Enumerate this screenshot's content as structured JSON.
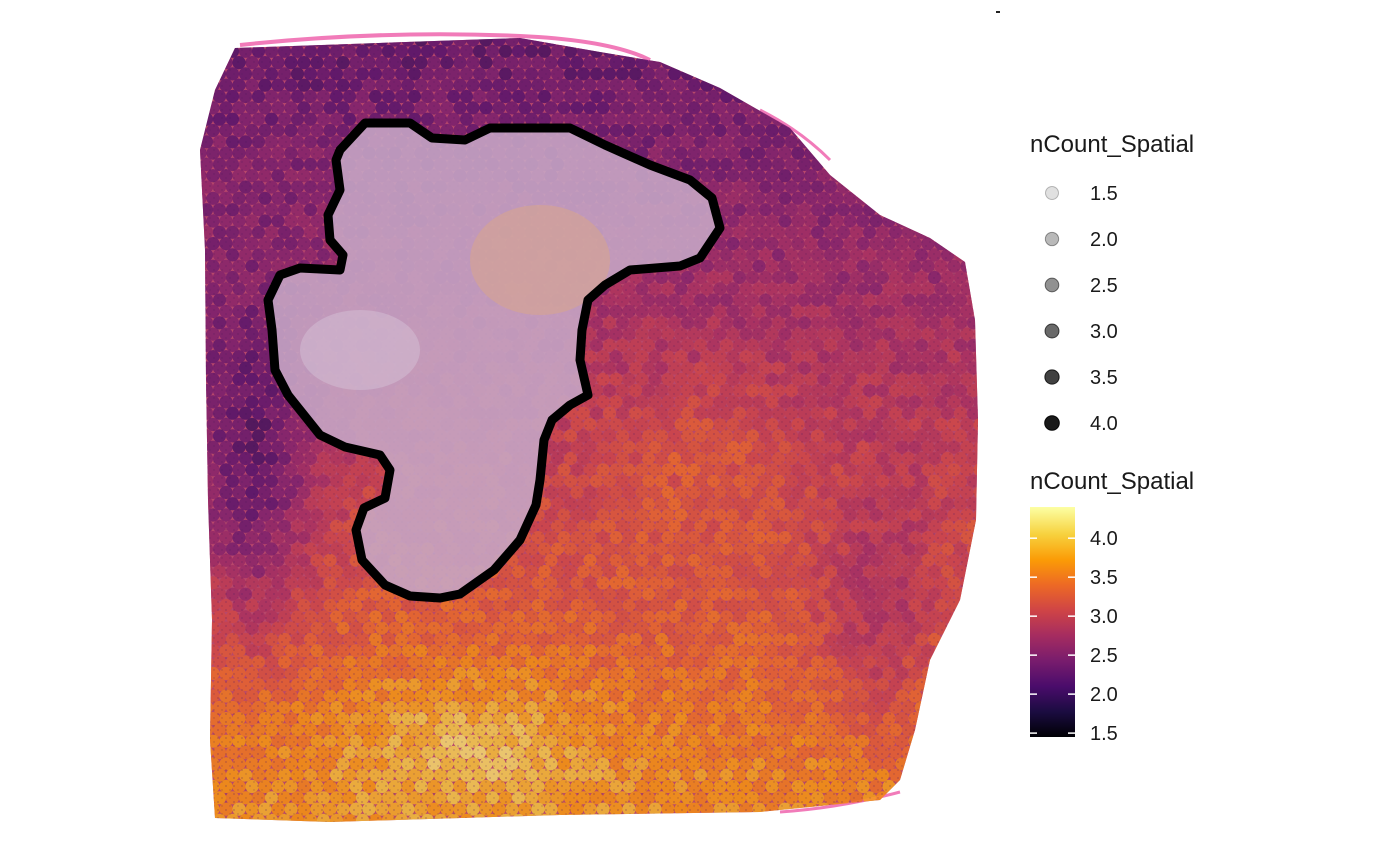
{
  "chart_data": {
    "type": "scatter",
    "description_kind": "spatial-feature-plot",
    "feature": "nCount_Spatial",
    "colormap": "inferno",
    "size_legend": {
      "title": "nCount_Spatial",
      "values": [
        1.5,
        2.0,
        2.5,
        3.0,
        3.5,
        4.0
      ],
      "labels": [
        "1.5",
        "2.0",
        "2.5",
        "3.0",
        "3.5",
        "4.0"
      ]
    },
    "color_legend": {
      "title": "nCount_Spatial",
      "range": [
        1.45,
        4.4
      ],
      "ticks": [
        1.5,
        2.0,
        2.5,
        3.0,
        3.5,
        4.0
      ],
      "tick_labels": [
        "1.5",
        "2.0",
        "2.5",
        "3.0",
        "3.5",
        "4.0"
      ],
      "stops": [
        "#000004",
        "#1b0c41",
        "#4a0c6b",
        "#781c6d",
        "#a52c60",
        "#cf4446",
        "#ed6925",
        "#fb9b06",
        "#f7d13d",
        "#fcffa4"
      ]
    },
    "annotation": "black outlined region of interest",
    "grid": false,
    "axes": false
  }
}
